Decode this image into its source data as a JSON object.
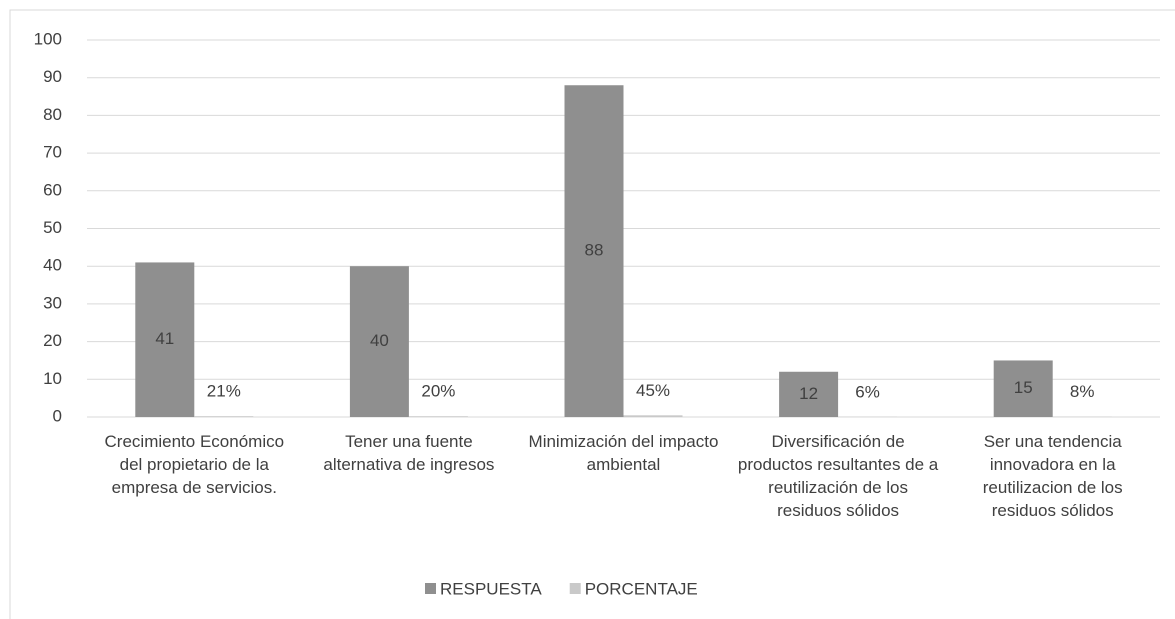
{
  "chart_data": {
    "type": "bar",
    "categories": [
      "Crecimiento Económico del propietario de la empresa de servicios.",
      "Tener una fuente alternativa de ingresos",
      "Minimización del impacto ambiental",
      "Diversificación de productos resultantes de a reutilización de los residuos sólidos",
      "Ser una tendencia innovadora en la reutilizacion de los residuos sólidos"
    ],
    "series": [
      {
        "name": "RESPUESTA",
        "color": "#8f8f8f",
        "values": [
          41,
          40,
          88,
          12,
          15
        ]
      },
      {
        "name": "PORCENTAJE",
        "color": "#c9c9c9",
        "values": [
          0.21,
          0.2,
          0.45,
          0.06,
          0.08
        ],
        "value_labels": [
          "21%",
          "20%",
          "45%",
          "6%",
          "8%"
        ]
      }
    ],
    "ylim": [
      0,
      100
    ],
    "yticks": [
      0,
      10,
      20,
      30,
      40,
      50,
      60,
      70,
      80,
      90,
      100
    ],
    "grid": true,
    "legend": "bottom"
  }
}
